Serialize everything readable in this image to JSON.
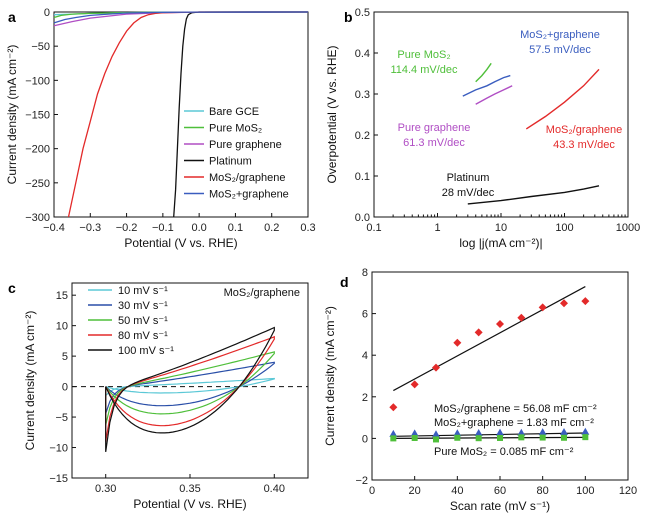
{
  "colors": {
    "bare_gce": "#5bc8d6",
    "pure_mos2": "#4fbf3a",
    "pure_graphene": "#b04ec4",
    "platinum": "#111111",
    "mos2_graphene": "#e32a2a",
    "mos2_plus_graphene": "#3a5dbf",
    "cv_10": "#5bc8d6",
    "cv_30": "#2a4fa8",
    "cv_50": "#4fbf3a",
    "cv_80": "#e32a2a",
    "cv_100": "#111111"
  },
  "chart_data": [
    {
      "panel": "a",
      "type": "line",
      "xlabel": "Potential (V vs. RHE)",
      "ylabel": "Current density (mA cm⁻²)",
      "xlim": [
        -0.4,
        0.3
      ],
      "ylim": [
        -300,
        0
      ],
      "xticks": [
        -0.4,
        -0.3,
        -0.2,
        -0.1,
        0.0,
        0.1,
        0.2,
        0.3
      ],
      "xtick_labels": [
        "−0.4",
        "−0.3",
        "−0.2",
        "−0.1",
        "0.0",
        "0.1",
        "0.2",
        "0.3"
      ],
      "yticks": [
        0,
        -50,
        -100,
        -150,
        -200,
        -250,
        -300
      ],
      "ytick_labels": [
        "0",
        "−50",
        "−100",
        "−150",
        "−200",
        "−250",
        "−300"
      ],
      "legend": "bottom-right",
      "series": [
        {
          "name": "Bare GCE",
          "color_key": "bare_gce",
          "x": [
            -0.4,
            -0.35,
            -0.3,
            -0.2,
            -0.1,
            0.0,
            0.3
          ],
          "y": [
            -4,
            -3,
            -2,
            -1,
            -0.5,
            -0.2,
            0
          ]
        },
        {
          "name": "Pure MoS₂",
          "color_key": "pure_mos2",
          "x": [
            -0.4,
            -0.38,
            -0.35,
            -0.3,
            -0.2,
            -0.1,
            0.0,
            0.3
          ],
          "y": [
            -8,
            -5,
            -3,
            -2,
            -1,
            -0.4,
            -0.1,
            0
          ]
        },
        {
          "name": "Pure graphene",
          "color_key": "pure_graphene",
          "x": [
            -0.4,
            -0.35,
            -0.3,
            -0.25,
            -0.2,
            -0.1,
            0.0,
            0.3
          ],
          "y": [
            -20,
            -14,
            -9,
            -6,
            -3,
            -1,
            -0.2,
            0
          ]
        },
        {
          "name": "Platinum",
          "color_key": "platinum",
          "x": [
            -0.07,
            -0.065,
            -0.06,
            -0.055,
            -0.05,
            -0.045,
            -0.04,
            -0.035,
            -0.03,
            -0.02,
            0.0,
            0.3
          ],
          "y": [
            -300,
            -260,
            -200,
            -140,
            -90,
            -50,
            -25,
            -10,
            -4,
            -1,
            0,
            0
          ]
        },
        {
          "name": "MoS₂/graphene",
          "color_key": "mos2_graphene",
          "x": [
            -0.36,
            -0.34,
            -0.32,
            -0.3,
            -0.28,
            -0.26,
            -0.24,
            -0.22,
            -0.2,
            -0.18,
            -0.16,
            -0.14,
            -0.12,
            -0.1,
            0.0,
            0.3
          ],
          "y": [
            -300,
            -250,
            -200,
            -160,
            -120,
            -90,
            -65,
            -45,
            -28,
            -16,
            -8,
            -4,
            -2,
            -1,
            0,
            0
          ]
        },
        {
          "name": "MoS₂+graphene",
          "color_key": "mos2_plus_graphene",
          "x": [
            -0.4,
            -0.37,
            -0.34,
            -0.3,
            -0.25,
            -0.2,
            -0.1,
            0.0,
            0.3
          ],
          "y": [
            -16,
            -11,
            -8,
            -5,
            -3,
            -1.5,
            -0.5,
            -0.1,
            0
          ]
        }
      ]
    },
    {
      "panel": "b",
      "type": "line",
      "xlabel": "log |j(mA cm⁻²)|",
      "ylabel": "Overpotential (V vs. RHE)",
      "xscale": "log",
      "xlim": [
        0.1,
        1000
      ],
      "ylim": [
        0.0,
        0.5
      ],
      "xticks": [
        0.1,
        1,
        10,
        100,
        1000
      ],
      "xtick_labels": [
        "0.1",
        "1",
        "10",
        "100",
        "1000"
      ],
      "yticks": [
        0.0,
        0.1,
        0.2,
        0.3,
        0.4,
        0.5
      ],
      "ytick_labels": [
        "0.0",
        "0.1",
        "0.2",
        "0.3",
        "0.4",
        "0.5"
      ],
      "series": [
        {
          "name": "Pure MoS₂",
          "slope_label": "114.4 mV/dec",
          "color_key": "pure_mos2",
          "x": [
            4,
            5,
            6,
            7
          ],
          "y": [
            0.33,
            0.345,
            0.36,
            0.375
          ]
        },
        {
          "name": "MoS₂+graphene",
          "slope_label": "57.5 mV/dec",
          "color_key": "mos2_plus_graphene",
          "x": [
            2.5,
            4,
            6,
            8,
            11,
            14
          ],
          "y": [
            0.295,
            0.31,
            0.32,
            0.33,
            0.34,
            0.345
          ]
        },
        {
          "name": "Pure graphene",
          "slope_label": "61.3 mV/dec",
          "color_key": "pure_graphene",
          "x": [
            4,
            6,
            8,
            11,
            15
          ],
          "y": [
            0.275,
            0.29,
            0.3,
            0.31,
            0.32
          ]
        },
        {
          "name": "MoS₂/graphene",
          "slope_label": "43.3 mV/dec",
          "color_key": "mos2_graphene",
          "x": [
            25,
            50,
            100,
            200,
            350
          ],
          "y": [
            0.215,
            0.245,
            0.28,
            0.32,
            0.36
          ]
        },
        {
          "name": "Platinum",
          "slope_label": "28 mV/dec",
          "color_key": "platinum",
          "x": [
            3,
            10,
            30,
            100,
            200,
            350
          ],
          "y": [
            0.032,
            0.04,
            0.05,
            0.06,
            0.068,
            0.076
          ]
        }
      ]
    },
    {
      "panel": "c",
      "type": "line",
      "title": "MoS₂/graphene",
      "xlabel": "Potential (V vs. RHE)",
      "ylabel": "Current density (mA cm⁻²)",
      "xlim": [
        0.28,
        0.42
      ],
      "ylim": [
        -15,
        17
      ],
      "xticks": [
        0.3,
        0.35,
        0.4
      ],
      "xtick_labels": [
        "0.30",
        "0.35",
        "0.40"
      ],
      "yticks": [
        -15,
        -10,
        -5,
        0,
        5,
        10,
        15
      ],
      "ytick_labels": [
        "−15",
        "−10",
        "−5",
        "0",
        "5",
        "10",
        "15"
      ],
      "legend": "top-left",
      "zero_line": "dashed",
      "series": [
        {
          "name": "10 mV s⁻¹",
          "color_key": "cv_10",
          "amp": 1.4
        },
        {
          "name": "30 mV s⁻¹",
          "color_key": "cv_30",
          "amp": 4.2
        },
        {
          "name": "50 mV s⁻¹",
          "color_key": "cv_50",
          "amp": 6.0
        },
        {
          "name": "80 mV s⁻¹",
          "color_key": "cv_80",
          "amp": 8.6
        },
        {
          "name": "100 mV s⁻¹",
          "color_key": "cv_100",
          "amp": 10.2
        }
      ]
    },
    {
      "panel": "d",
      "type": "scatter",
      "xlabel": "Scan rate (mV s⁻¹)",
      "ylabel": "Current density (mA cm⁻²)",
      "xlim": [
        0,
        120
      ],
      "ylim": [
        -2,
        8
      ],
      "xticks": [
        0,
        20,
        40,
        60,
        80,
        100,
        120
      ],
      "xtick_labels": [
        "0",
        "20",
        "40",
        "60",
        "80",
        "100",
        "120"
      ],
      "yticks": [
        -2,
        0,
        2,
        4,
        6,
        8
      ],
      "ytick_labels": [
        "−2",
        "0",
        "2",
        "4",
        "6",
        "8"
      ],
      "series": [
        {
          "name": "MoS₂/graphene",
          "fit_label": "MoS₂/graphene = 56.08 mF cm⁻²",
          "color_key": "mos2_graphene",
          "marker": "diamond",
          "x": [
            10,
            20,
            30,
            40,
            50,
            60,
            70,
            80,
            90,
            100
          ],
          "y": [
            1.5,
            2.6,
            3.4,
            4.6,
            5.1,
            5.5,
            5.8,
            6.3,
            6.5,
            6.6
          ],
          "fit": [
            [
              10,
              2.3
            ],
            [
              100,
              7.3
            ]
          ]
        },
        {
          "name": "MoS₂+graphene",
          "fit_label": "MoS₂+graphene = 1.83 mF cm⁻²",
          "color_key": "mos2_plus_graphene",
          "marker": "triangle",
          "x": [
            10,
            20,
            30,
            40,
            50,
            60,
            70,
            80,
            90,
            100
          ],
          "y": [
            0.22,
            0.24,
            0.2,
            0.25,
            0.26,
            0.28,
            0.27,
            0.3,
            0.31,
            0.32
          ],
          "fit": [
            [
              10,
              0.1
            ],
            [
              100,
              0.26
            ]
          ]
        },
        {
          "name": "Pure MoS₂",
          "fit_label": "Pure MoS₂ = 0.085 mF cm⁻²",
          "color_key": "pure_mos2",
          "marker": "square",
          "x": [
            10,
            20,
            30,
            40,
            50,
            60,
            70,
            80,
            90,
            100
          ],
          "y": [
            0.0,
            0.02,
            -0.05,
            0.03,
            0.01,
            0.02,
            0.05,
            0.04,
            0.03,
            0.06
          ],
          "fit": [
            [
              10,
              0.0
            ],
            [
              100,
              0.05
            ]
          ]
        }
      ]
    }
  ],
  "panel_labels": [
    "a",
    "b",
    "c",
    "d"
  ]
}
